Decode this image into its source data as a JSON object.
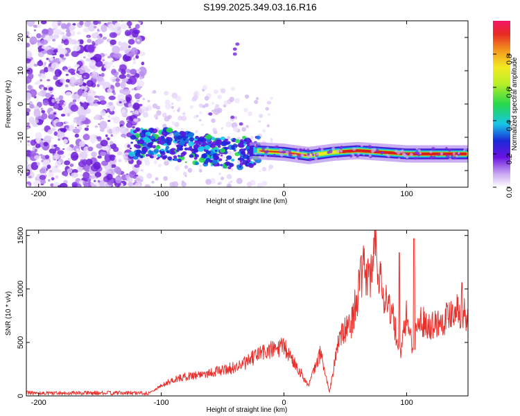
{
  "title": "S199.2025.349.03.16.R16",
  "colors": {
    "snr_line": "#e8302c",
    "spectrogram_scatter": "#8a3de0",
    "ridge_core": "#d8201c"
  },
  "colorbar": {
    "label": "Normalized spectral amplitude",
    "ticks": [
      "0.0",
      "0.2",
      "0.4",
      "0.6",
      "0.8"
    ],
    "range": [
      0,
      1
    ]
  },
  "chart_data": [
    {
      "type": "heatmap",
      "name": "spectrogram",
      "xlabel": "Height of straight line (km)",
      "ylabel": "Frequency (Hz)",
      "xlim": [
        -210,
        150
      ],
      "ylim": [
        -25,
        25
      ],
      "xticks": [
        "-200",
        "-100",
        "0",
        "100"
      ],
      "xtick_values": [
        -200,
        -100,
        0,
        100
      ],
      "yticks": [
        "20",
        "10",
        "0",
        "-10",
        "-20"
      ],
      "ytick_values": [
        20,
        10,
        0,
        -10,
        -20
      ],
      "ridge": {
        "x": [
          -125,
          -100,
          -80,
          -60,
          -40,
          -25,
          0,
          20,
          40,
          60,
          80,
          100,
          120,
          150
        ],
        "y": [
          -12,
          -12,
          -13,
          -14,
          -15,
          -14,
          -14.5,
          -15.5,
          -14.5,
          -14,
          -14.5,
          -15,
          -15,
          -15
        ]
      }
    },
    {
      "type": "line",
      "name": "snr",
      "xlabel": "Height of straight line (km)",
      "ylabel": "SNR (10 * v/v)",
      "xlim": [
        -210,
        150
      ],
      "ylim": [
        0,
        1550
      ],
      "xticks": [
        "-200",
        "-100",
        "0",
        "100"
      ],
      "xtick_values": [
        -200,
        -100,
        0,
        100
      ],
      "yticks": [
        "1500",
        "1000",
        "500",
        "0"
      ],
      "ytick_values": [
        1500,
        1000,
        500,
        0
      ],
      "envelope": {
        "x": [
          -210,
          -150,
          -110,
          -100,
          -90,
          -80,
          -60,
          -40,
          -30,
          -20,
          -10,
          0,
          10,
          20,
          30,
          37,
          45,
          50,
          55,
          60,
          65,
          70,
          75,
          80,
          85,
          90,
          95,
          100,
          105,
          110,
          120,
          130,
          140,
          150
        ],
        "y": [
          25,
          25,
          30,
          100,
          160,
          190,
          230,
          280,
          330,
          420,
          450,
          480,
          300,
          100,
          430,
          30,
          580,
          640,
          720,
          1000,
          1250,
          1150,
          1450,
          1000,
          950,
          700,
          400,
          800,
          480,
          750,
          700,
          750,
          880,
          780
        ]
      },
      "spikes": {
        "x": [
          74,
          106,
          94,
          145
        ],
        "y": [
          1550,
          1470,
          1340,
          1060
        ]
      }
    }
  ]
}
